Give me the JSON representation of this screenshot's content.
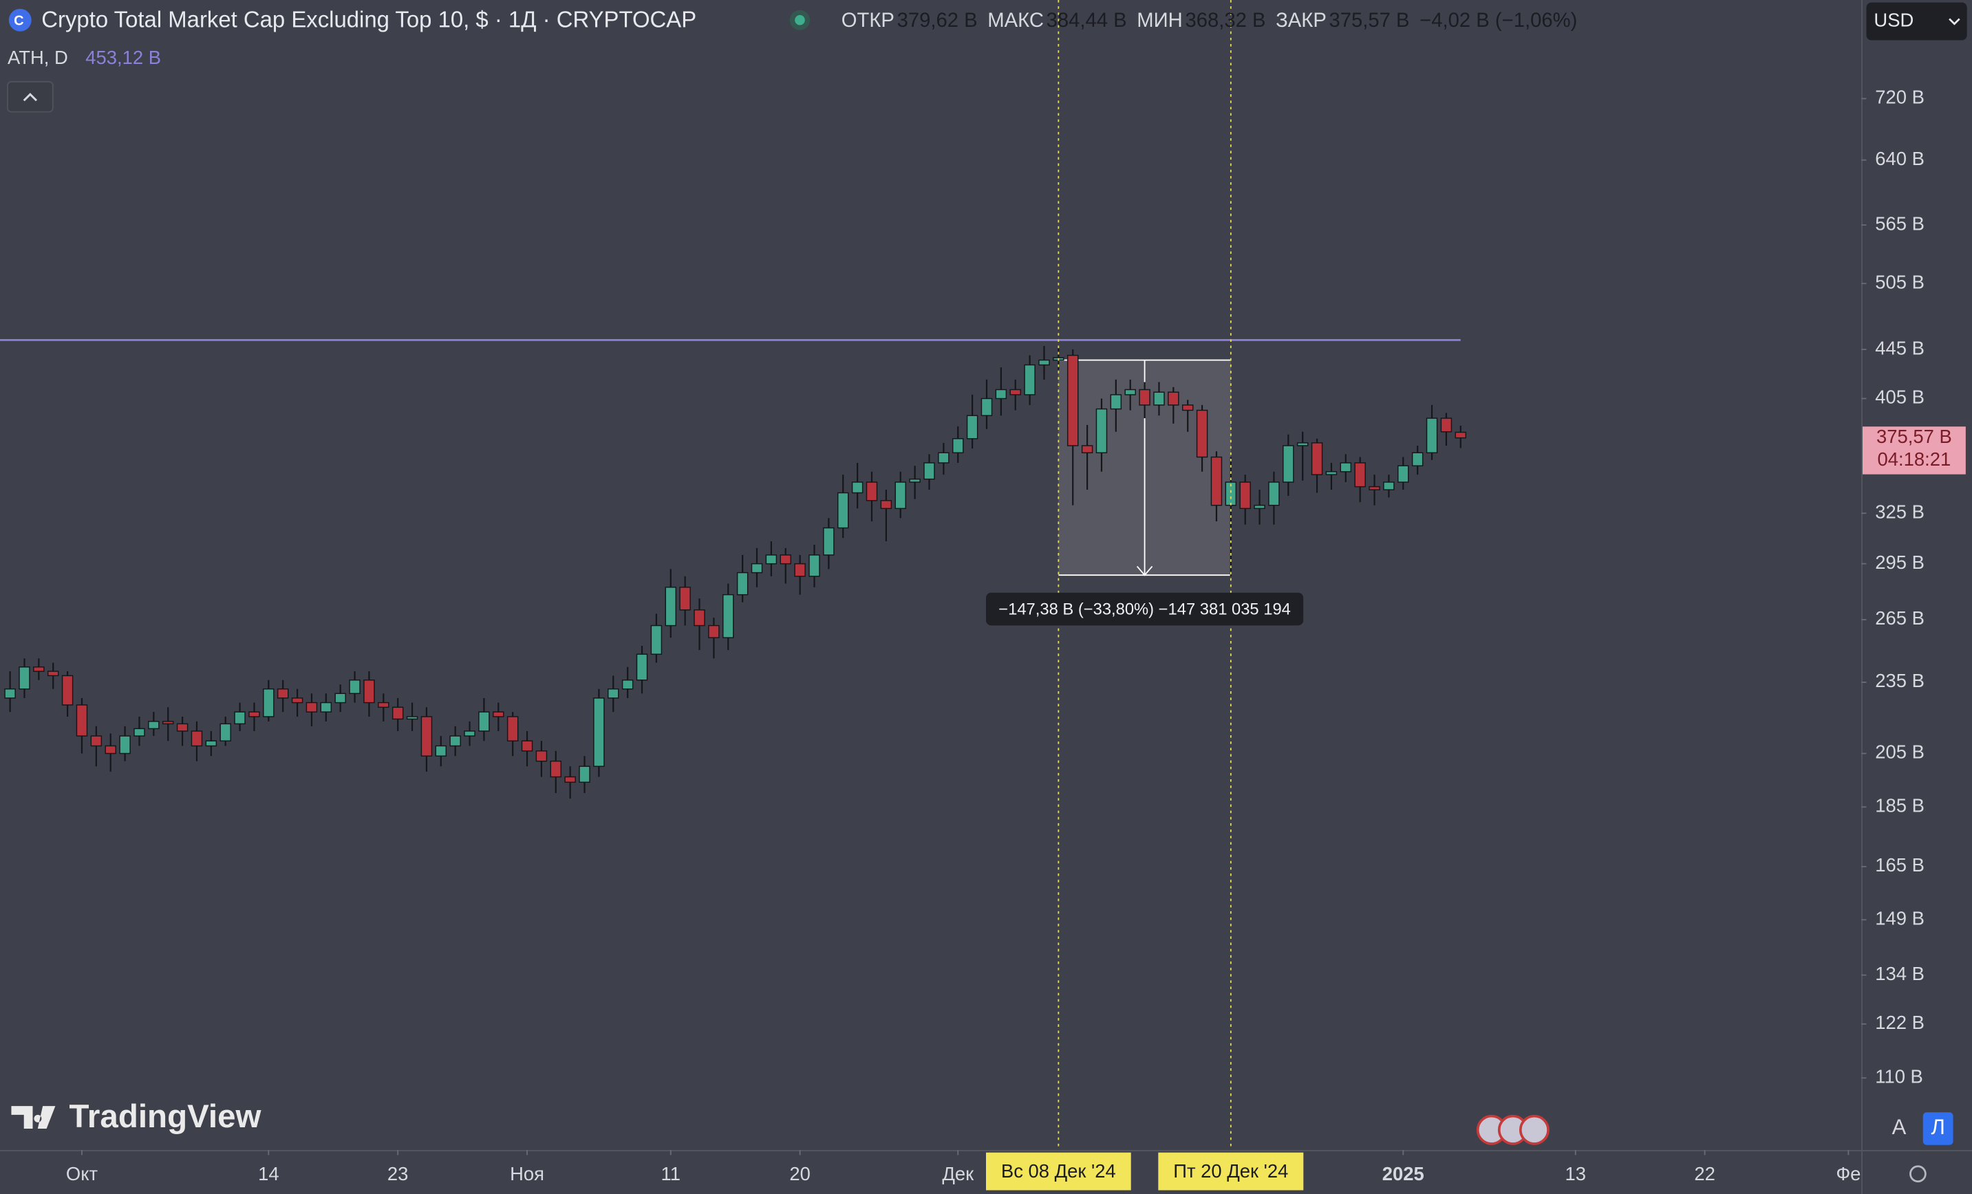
{
  "chart_data": {
    "type": "candlestick",
    "title": "Crypto Total Market Cap Excluding Top 10, $ · 1Д · CRYPTOCAP",
    "legend": [
      {
        "label": "ОТКР",
        "value": "379,62 B"
      },
      {
        "label": "МАКС",
        "value": "384,44 B"
      },
      {
        "label": "МИН",
        "value": "368,32 B"
      },
      {
        "label": "ЗАКР",
        "value": "375,57 B"
      }
    ],
    "change": "−4,02 B (−1,06%)",
    "currency": "USD",
    "logo": "TradingView",
    "buttons": [
      "A",
      "Л"
    ],
    "log_scale": true,
    "up_color": "#41a38a",
    "down_color": "#b8343c",
    "ath": {
      "name": "ATH, D",
      "value": 453.12,
      "label": "453,12 B",
      "color": "#8c80d8"
    },
    "last_price": {
      "value": 375.57,
      "label": "375,57 B",
      "countdown": "04:18:21"
    },
    "measure": {
      "x_from": 73,
      "x_to": 85,
      "from": 436.0,
      "to": 288.62,
      "label": "−147,38 B (−33,80%) −147 381 035 194"
    },
    "crosshairs": [
      {
        "x": 73,
        "label": "Вс 08 Дек '24"
      },
      {
        "x": 85,
        "label": "Пт 20 Дек '24"
      }
    ],
    "xlim": [
      -0.7,
      128.9
    ],
    "xticks": [
      {
        "value": 5,
        "label": "Окт"
      },
      {
        "value": 18,
        "label": "14"
      },
      {
        "value": 27,
        "label": "23"
      },
      {
        "value": 36,
        "label": "Ноя"
      },
      {
        "value": 46,
        "label": "11"
      },
      {
        "value": 55,
        "label": "20"
      },
      {
        "value": 66,
        "label": "Дек"
      },
      {
        "value": 97,
        "label": "2025"
      },
      {
        "value": 109,
        "label": "13"
      },
      {
        "value": 118,
        "label": "22"
      },
      {
        "value": 128,
        "label": "Фе"
      }
    ],
    "ylim": [
      95.8,
      870
    ],
    "yticks": [
      {
        "value": 720,
        "label": "720 B"
      },
      {
        "value": 640,
        "label": "640 B"
      },
      {
        "value": 565,
        "label": "565 B"
      },
      {
        "value": 505,
        "label": "505 B"
      },
      {
        "value": 445,
        "label": "445 B"
      },
      {
        "value": 405,
        "label": "405 B"
      },
      {
        "value": 325,
        "label": "325 B"
      },
      {
        "value": 295,
        "label": "295 B"
      },
      {
        "value": 265,
        "label": "265 B"
      },
      {
        "value": 235,
        "label": "235 B"
      },
      {
        "value": 205,
        "label": "205 B"
      },
      {
        "value": 185,
        "label": "185 B"
      },
      {
        "value": 165,
        "label": "165 B"
      },
      {
        "value": 149,
        "label": "149 B"
      },
      {
        "value": 134,
        "label": "134 B"
      },
      {
        "value": 122,
        "label": "122 B"
      },
      {
        "value": 110,
        "label": "110 B"
      }
    ],
    "candles": {
      "open": [
        228,
        232,
        242,
        240,
        238,
        225,
        212,
        208,
        205,
        212,
        215,
        218,
        217,
        214,
        208,
        210,
        217,
        222,
        220,
        232,
        228,
        226,
        222,
        226,
        230,
        236,
        226,
        224,
        219,
        220,
        204,
        208,
        212,
        214,
        222,
        220,
        210,
        206,
        202,
        196,
        194,
        200,
        228,
        232,
        236,
        248,
        262,
        282,
        270,
        262,
        256,
        278,
        290,
        295,
        300,
        295,
        288,
        300,
        316,
        338,
        345,
        333,
        328,
        345,
        347,
        358,
        365,
        375,
        392,
        405,
        412,
        408,
        432,
        436,
        440,
        370,
        365,
        397,
        408,
        412,
        400,
        410,
        400,
        396,
        362,
        330,
        345,
        328,
        330,
        345,
        370,
        372,
        350,
        352,
        358,
        342,
        340,
        345,
        356,
        365,
        390,
        379.62
      ],
      "high": [
        240,
        246,
        246,
        244,
        240,
        228,
        216,
        213,
        216,
        220,
        222,
        224,
        220,
        218,
        214,
        220,
        226,
        226,
        236,
        236,
        232,
        230,
        230,
        234,
        240,
        240,
        230,
        228,
        226,
        224,
        212,
        216,
        218,
        228,
        226,
        222,
        214,
        210,
        206,
        200,
        204,
        232,
        238,
        242,
        252,
        268,
        292,
        288,
        276,
        266,
        284,
        300,
        304,
        308,
        304,
        300,
        306,
        322,
        350,
        358,
        352,
        340,
        352,
        356,
        364,
        372,
        384,
        408,
        420,
        430,
        420,
        440,
        448,
        446,
        445,
        385,
        405,
        420,
        420,
        418,
        418,
        414,
        404,
        400,
        366,
        362,
        350,
        340,
        352,
        378,
        380,
        375,
        358,
        364,
        362,
        350,
        350,
        362,
        370,
        400,
        394,
        384.44
      ],
      "low": [
        222,
        228,
        236,
        232,
        220,
        205,
        200,
        198,
        202,
        208,
        212,
        210,
        208,
        202,
        204,
        208,
        214,
        214,
        218,
        222,
        220,
        216,
        218,
        222,
        226,
        220,
        218,
        214,
        214,
        198,
        200,
        204,
        208,
        210,
        214,
        204,
        200,
        196,
        190,
        188,
        190,
        196,
        222,
        228,
        230,
        244,
        256,
        262,
        250,
        246,
        250,
        274,
        282,
        288,
        284,
        278,
        282,
        292,
        310,
        328,
        320,
        308,
        322,
        334,
        340,
        350,
        358,
        368,
        382,
        392,
        396,
        400,
        420,
        428,
        330,
        340,
        352,
        380,
        396,
        390,
        392,
        386,
        380,
        352,
        320,
        288,
        318,
        318,
        318,
        336,
        346,
        338,
        340,
        345,
        332,
        330,
        335,
        340,
        350,
        360,
        370,
        368.32
      ],
      "close": [
        232,
        242,
        240,
        238,
        225,
        212,
        208,
        205,
        212,
        215,
        218,
        217,
        214,
        208,
        210,
        217,
        222,
        220,
        232,
        228,
        226,
        222,
        226,
        230,
        236,
        226,
        224,
        219,
        220,
        204,
        208,
        212,
        214,
        222,
        220,
        210,
        206,
        202,
        196,
        194,
        200,
        228,
        232,
        236,
        248,
        262,
        282,
        270,
        262,
        256,
        278,
        290,
        295,
        300,
        295,
        288,
        300,
        316,
        338,
        345,
        333,
        328,
        345,
        347,
        358,
        365,
        375,
        392,
        405,
        412,
        408,
        432,
        436,
        438,
        370,
        365,
        397,
        408,
        412,
        400,
        410,
        400,
        396,
        362,
        330,
        345,
        328,
        330,
        345,
        370,
        372,
        350,
        352,
        358,
        342,
        340,
        345,
        356,
        365,
        390,
        380,
        375.57
      ]
    }
  }
}
